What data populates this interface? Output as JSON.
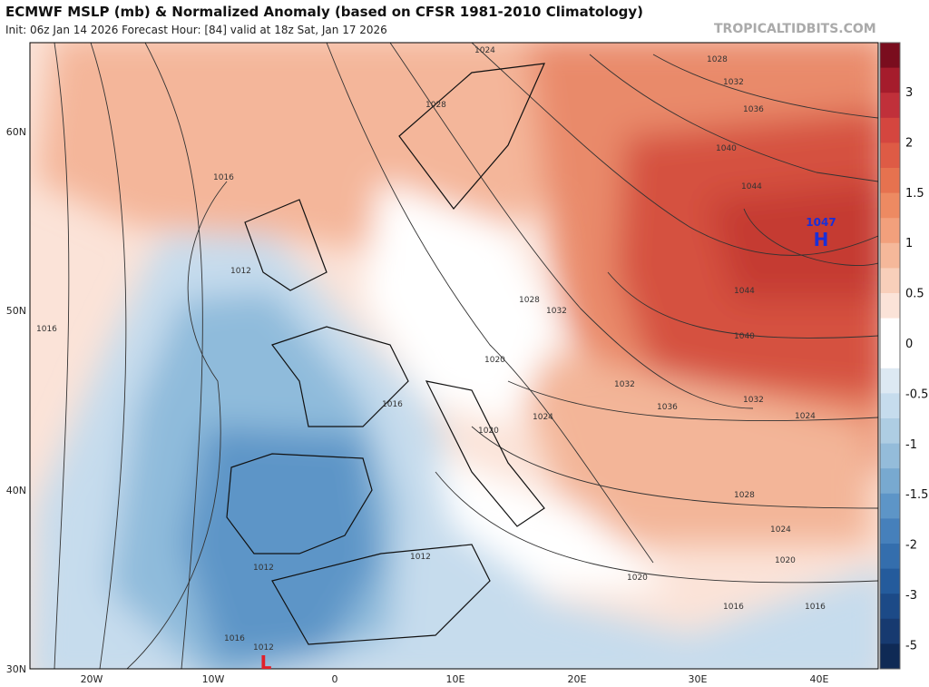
{
  "header": {
    "title": "ECMWF MSLP (mb) & Normalized Anomaly (based on CFSR 1981-2010 Climatology)",
    "subtitle": "Init: 06z Jan 14 2026   Forecast Hour: [84]   valid at 18z Sat, Jan 17 2026",
    "credit": "TROPICALTIDBITS.COM"
  },
  "colorbar": {
    "labels": [
      "3",
      "2",
      "1.5",
      "1",
      "0.5",
      "0",
      "-0.5",
      "-1",
      "-1.5",
      "-2",
      "-3",
      "-5"
    ]
  },
  "axes": {
    "lat_labels": [
      "60N",
      "50N",
      "40N",
      "30N"
    ],
    "lon_labels": [
      "20W",
      "10W",
      "0",
      "10E",
      "20E",
      "30E",
      "40E"
    ]
  },
  "centers": [
    {
      "value": "1047",
      "symbol": "H"
    },
    {
      "symbol": "L"
    }
  ],
  "isobar_labels": [
    "1024",
    "1028",
    "1032",
    "1036",
    "1040",
    "1044",
    "1028",
    "1016",
    "1012",
    "1016",
    "1028",
    "1032",
    "1020",
    "1016",
    "1024",
    "1032",
    "1036",
    "1032",
    "1024",
    "1028",
    "1024",
    "1020",
    "1020",
    "1016",
    "1016",
    "1012",
    "1012",
    "1016",
    "1012",
    "1020",
    "1040",
    "1044"
  ]
}
